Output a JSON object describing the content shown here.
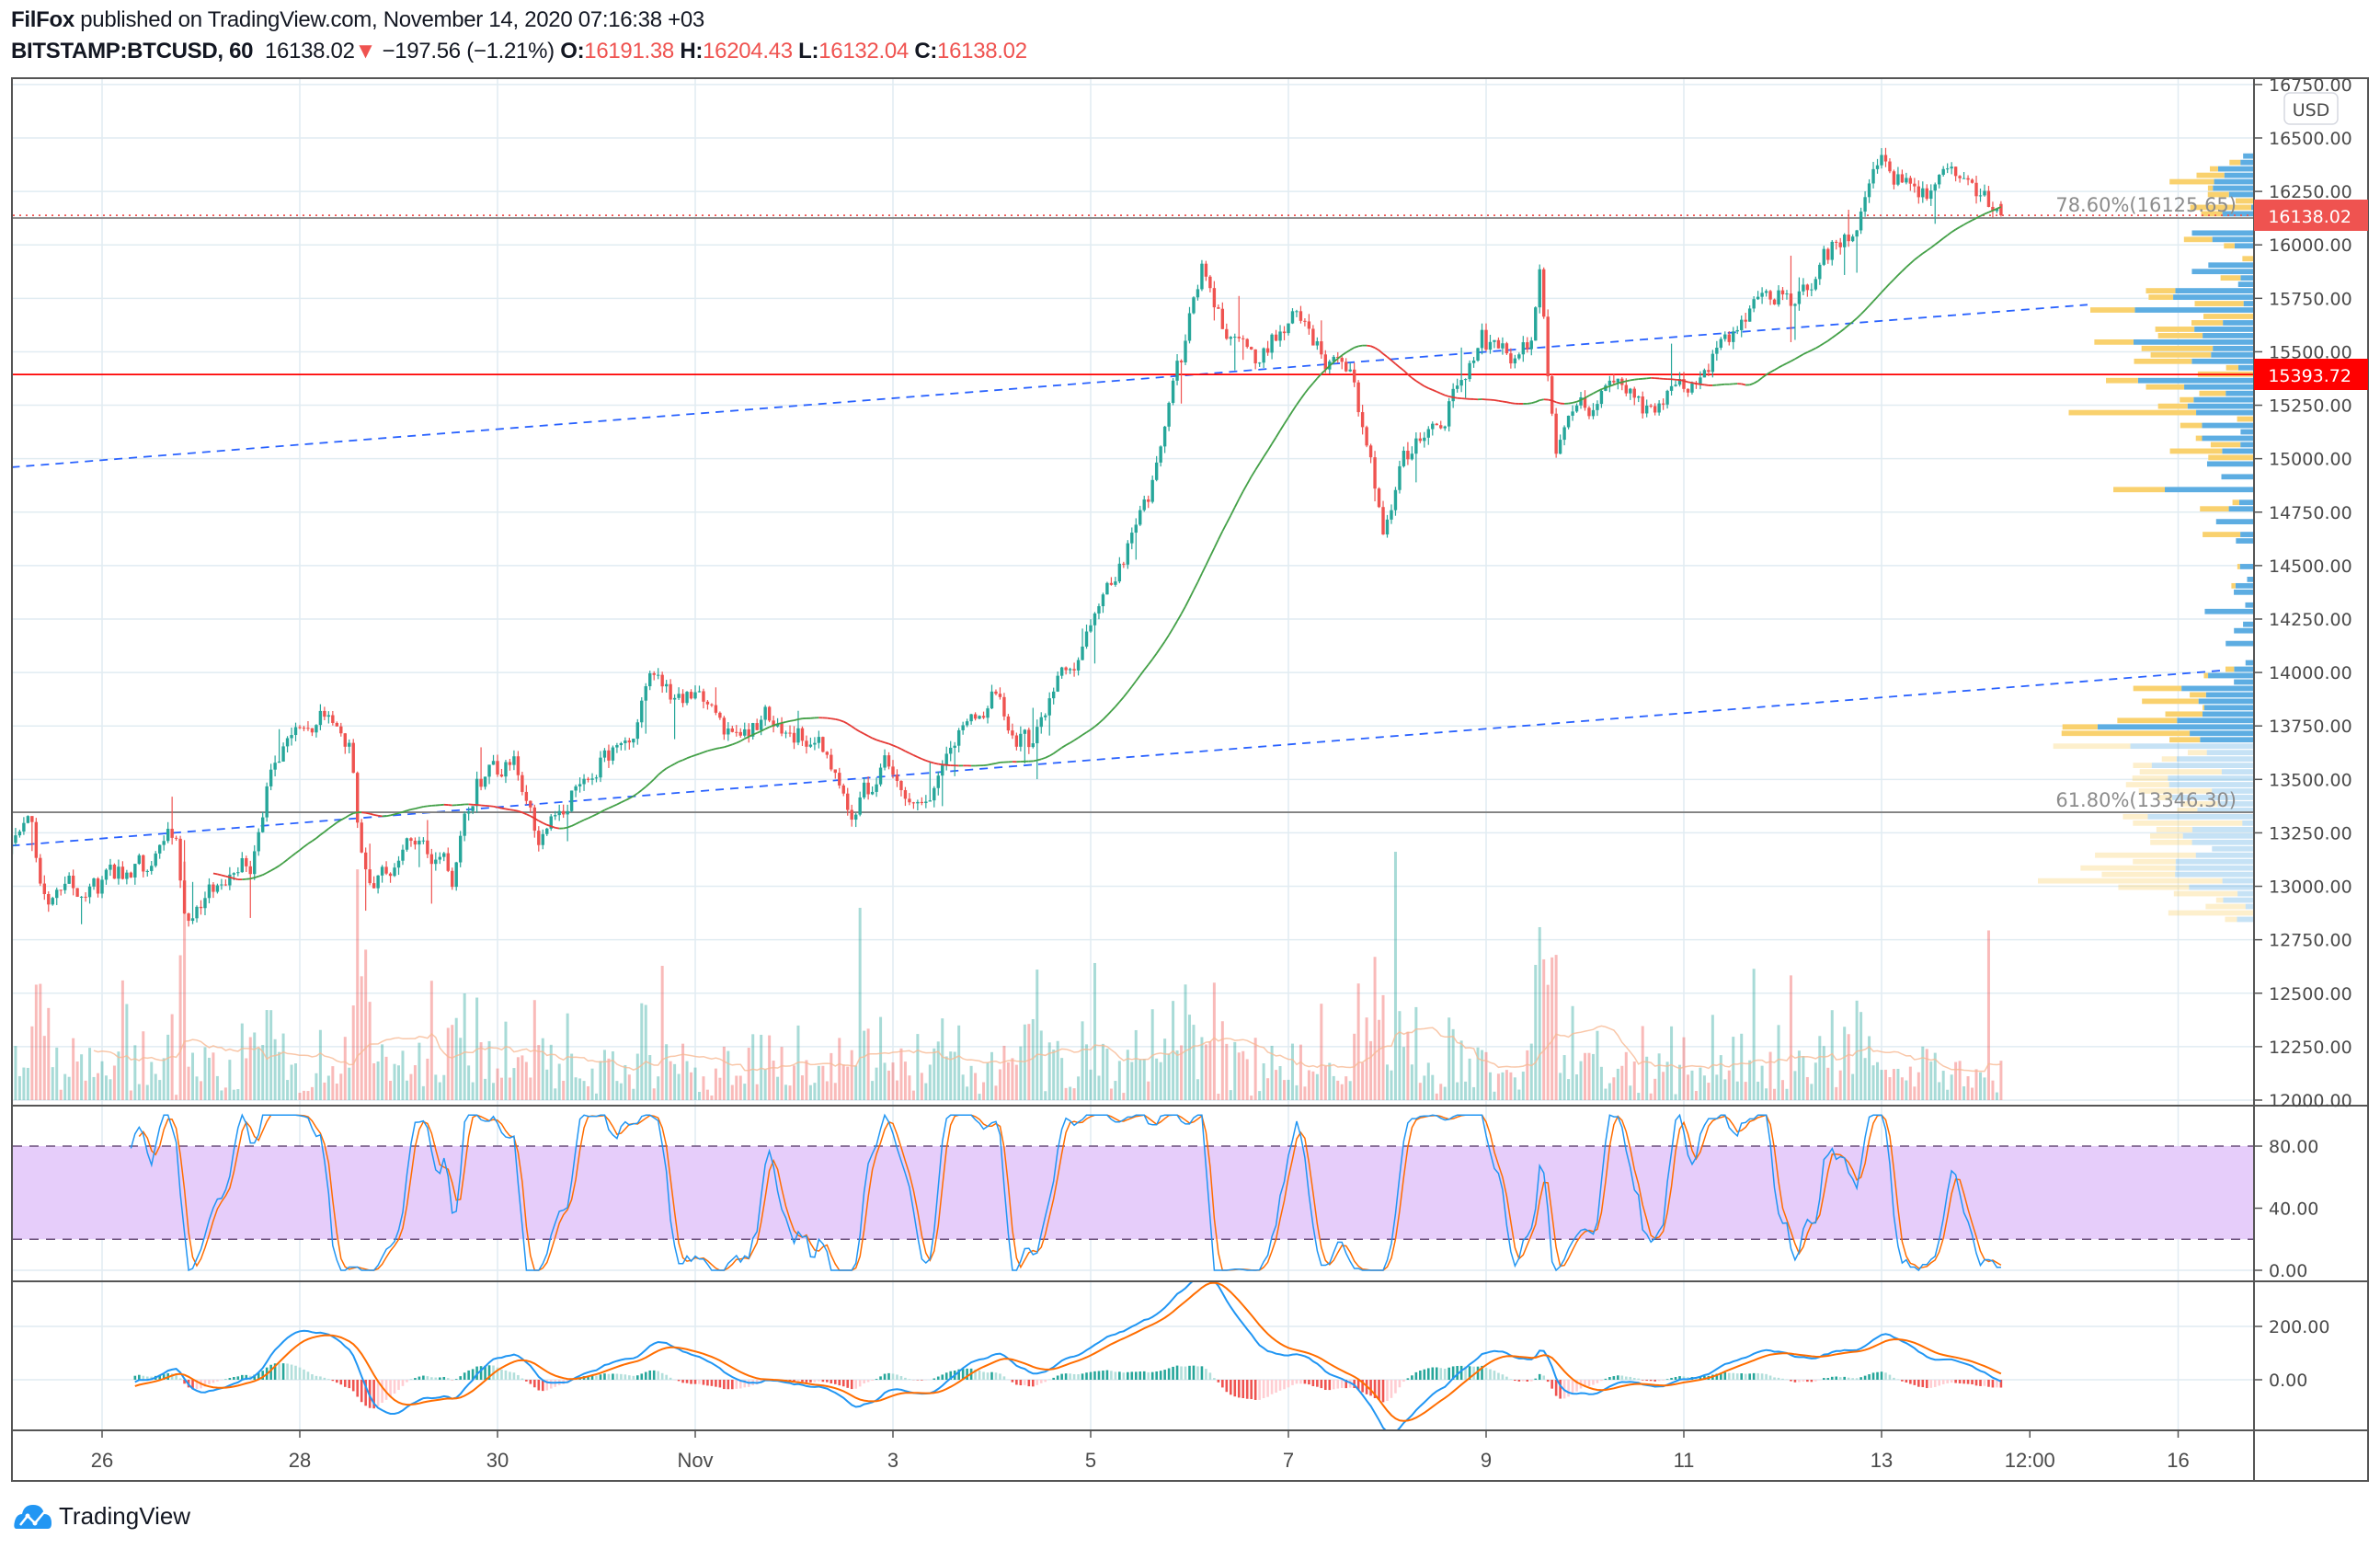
{
  "header": {
    "author": "FilFox",
    "published": "published on TradingView.com, November 14, 2020 07:16:38 +03",
    "symbol": "BITSTAMP:BTCUSD, 60",
    "last": "16138.02",
    "change": "−197.56 (−1.21%)",
    "o_label": "O:",
    "o": "16191.38",
    "h_label": "H:",
    "h": "16204.43",
    "l_label": "L:",
    "l": "16132.04",
    "c_label": "C:",
    "c": "16138.02"
  },
  "currency_button": "USD",
  "price_labels": {
    "current": "16138.02",
    "level": "15393.72"
  },
  "fib_labels": {
    "upper": "78.60%(16125.65)",
    "lower": "61.80%(13346.30)"
  },
  "footer": {
    "brand": "TradingView"
  },
  "colors": {
    "up": "#26a69a",
    "down": "#ef5350",
    "k": "#2196f3",
    "d": "#ff6d00",
    "stoch_band": "#e6cdfa",
    "profile_up": "#5dade2",
    "profile_down": "#f9d16e",
    "level": "#ff0000",
    "trend": "#2962ff"
  },
  "chart_data": {
    "type": "candlestick",
    "title": "BITSTAMP:BTCUSD, 60",
    "time_unit": "hours since Oct 26 2020 00:00",
    "ohlc_last": {
      "open": 16191.38,
      "high": 16204.43,
      "low": 16132.04,
      "close": 16138.02
    },
    "price_path": [
      [
        -22,
        13150
      ],
      [
        -17,
        13300
      ],
      [
        -14,
        12950
      ],
      [
        0,
        13000
      ],
      [
        12,
        13100
      ],
      [
        18,
        13250
      ],
      [
        20,
        12850
      ],
      [
        25,
        13000
      ],
      [
        36,
        13100
      ],
      [
        40,
        13500
      ],
      [
        45,
        13750
      ],
      [
        53,
        13800
      ],
      [
        60,
        13650
      ],
      [
        63,
        13150
      ],
      [
        66,
        13000
      ],
      [
        76,
        13250
      ],
      [
        85,
        13050
      ],
      [
        91,
        13500
      ],
      [
        100,
        13550
      ],
      [
        106,
        13250
      ],
      [
        113,
        13400
      ],
      [
        122,
        13600
      ],
      [
        129,
        13700
      ],
      [
        133,
        13950
      ],
      [
        144,
        13850
      ],
      [
        151,
        13700
      ],
      [
        162,
        13800
      ],
      [
        173,
        13700
      ],
      [
        182,
        13350
      ],
      [
        190,
        13550
      ],
      [
        195,
        13350
      ],
      [
        201,
        13450
      ],
      [
        208,
        13700
      ],
      [
        217,
        13900
      ],
      [
        225,
        13650
      ],
      [
        232,
        13950
      ],
      [
        241,
        14200
      ],
      [
        248,
        14500
      ],
      [
        254,
        14800
      ],
      [
        258,
        15200
      ],
      [
        263,
        15500
      ],
      [
        267,
        15900
      ],
      [
        272,
        15600
      ],
      [
        280,
        15500
      ],
      [
        289,
        15650
      ],
      [
        296,
        15500
      ],
      [
        303,
        15350
      ],
      [
        307,
        15050
      ],
      [
        311,
        14700
      ],
      [
        316,
        15050
      ],
      [
        324,
        15100
      ],
      [
        329,
        15350
      ],
      [
        335,
        15550
      ],
      [
        342,
        15450
      ],
      [
        347,
        15500
      ],
      [
        349,
        15800
      ],
      [
        353,
        15000
      ],
      [
        360,
        15250
      ],
      [
        371,
        15300
      ],
      [
        377,
        15200
      ],
      [
        382,
        15300
      ],
      [
        389,
        15450
      ],
      [
        397,
        15600
      ],
      [
        404,
        15850
      ],
      [
        411,
        15700
      ],
      [
        419,
        15950
      ],
      [
        426,
        16100
      ],
      [
        432,
        16450
      ],
      [
        437,
        16300
      ],
      [
        444,
        16250
      ],
      [
        452,
        16300
      ],
      [
        457,
        16250
      ],
      [
        461,
        16138.02
      ]
    ],
    "price_axis": {
      "ticks": [
        "16750.00",
        "16500.00",
        "16250.00",
        "16000.00",
        "15750.00",
        "15500.00",
        "15250.00",
        "15000.00",
        "14750.00",
        "14500.00",
        "14250.00",
        "14000.00",
        "13750.00",
        "13500.00",
        "13250.00",
        "13000.00",
        "12750.00",
        "12500.00",
        "12250.00",
        "12000.00"
      ],
      "range": [
        11980,
        16780
      ]
    },
    "time_axis": {
      "labels": [
        [
          "26",
          0
        ],
        [
          "28",
          48
        ],
        [
          "30",
          96
        ],
        [
          "Nov",
          144
        ],
        [
          "3",
          192
        ],
        [
          "5",
          240
        ],
        [
          "7",
          288
        ],
        [
          "9",
          336
        ],
        [
          "11",
          384
        ],
        [
          "13",
          432
        ],
        [
          "12:00",
          468
        ],
        [
          "16",
          504
        ]
      ]
    },
    "horizontal_levels": [
      {
        "price": 15393.72,
        "style": "solid-red"
      },
      {
        "price": 16125.65,
        "label": "78.60%"
      },
      {
        "price": 13346.3,
        "label": "61.80%"
      },
      {
        "price": 16138.02,
        "style": "dotted-current"
      }
    ],
    "trend_lines": [
      {
        "from": [
          -22,
          14960
        ],
        "to": [
          482,
          15720
        ]
      },
      {
        "from": [
          -22,
          13190
        ],
        "to": [
          515,
          14010
        ]
      }
    ],
    "moving_average": {
      "type": "SMA",
      "period": 50,
      "color_by_slope": true
    },
    "stoch_rsi": {
      "ticks": [
        "80.00",
        "40.00",
        "0.00"
      ],
      "bands": [
        20,
        80
      ],
      "range": [
        0,
        100
      ]
    },
    "macd": {
      "ticks": [
        "200.00",
        "0.00"
      ],
      "fast": 12,
      "slow": 26,
      "signal": 9
    }
  }
}
